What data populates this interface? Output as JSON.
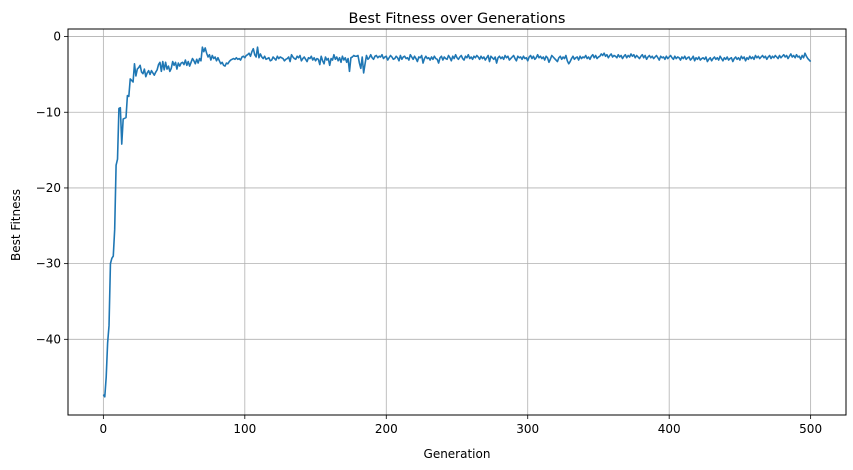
{
  "chart_data": {
    "type": "line",
    "title": "Best Fitness over Generations",
    "xlabel": "Generation",
    "ylabel": "Best Fitness",
    "xlim": [
      -25,
      525
    ],
    "ylim": [
      -50,
      1
    ],
    "grid": true,
    "line_color": "#1f77b4",
    "x_ticks": [
      0,
      100,
      200,
      300,
      400,
      500
    ],
    "y_ticks": [
      0,
      -10,
      -20,
      -30,
      -40
    ],
    "x_tick_labels": [
      "0",
      "100",
      "200",
      "300",
      "400",
      "500"
    ],
    "y_tick_labels": [
      "0",
      "−10",
      "−20",
      "−30",
      "−40"
    ],
    "series": [
      {
        "x_start": 0,
        "x_step": 1,
        "values": [
          -47.3,
          -47.6,
          -45.0,
          -40.5,
          -38.2,
          -30.0,
          -29.3,
          -29.0,
          -25.5,
          -17.0,
          -16.2,
          -9.5,
          -9.4,
          -14.2,
          -10.9,
          -10.8,
          -10.7,
          -7.8,
          -7.9,
          -5.6,
          -5.8,
          -6.0,
          -3.6,
          -5.2,
          -4.3,
          -4.1,
          -3.8,
          -4.7,
          -4.9,
          -4.3,
          -5.3,
          -4.8,
          -4.5,
          -5.0,
          -4.5,
          -4.8,
          -5.1,
          -4.7,
          -4.4,
          -3.7,
          -3.4,
          -4.6,
          -3.3,
          -4.4,
          -3.4,
          -4.3,
          -3.9,
          -4.6,
          -4.2,
          -3.3,
          -3.8,
          -3.4,
          -4.3,
          -3.5,
          -3.9,
          -3.5,
          -3.4,
          -3.7,
          -3.1,
          -3.8,
          -3.3,
          -3.9,
          -3.4,
          -2.9,
          -3.2,
          -3.6,
          -3.0,
          -3.5,
          -2.9,
          -3.2,
          -1.4,
          -2.0,
          -1.5,
          -2.2,
          -2.7,
          -2.4,
          -3.1,
          -2.5,
          -2.9,
          -2.7,
          -3.2,
          -2.8,
          -3.2,
          -3.6,
          -3.4,
          -3.8,
          -3.9,
          -3.5,
          -3.6,
          -3.3,
          -3.1,
          -3.0,
          -2.9,
          -3.0,
          -2.8,
          -3.0,
          -2.9,
          -3.1,
          -2.7,
          -2.6,
          -2.8,
          -2.5,
          -2.4,
          -2.2,
          -2.6,
          -2.0,
          -1.6,
          -2.4,
          -2.7,
          -1.4,
          -2.8,
          -2.3,
          -2.7,
          -2.9,
          -2.6,
          -3.0,
          -2.9,
          -2.8,
          -3.2,
          -3.1,
          -2.7,
          -2.9,
          -3.1,
          -2.6,
          -2.9,
          -2.7,
          -2.8,
          -2.9,
          -3.2,
          -3.0,
          -2.9,
          -2.7,
          -3.3,
          -2.4,
          -2.7,
          -2.9,
          -3.0,
          -2.6,
          -2.8,
          -2.5,
          -3.2,
          -2.9,
          -2.7,
          -3.0,
          -3.3,
          -2.8,
          -2.9,
          -2.6,
          -3.1,
          -2.8,
          -3.2,
          -2.9,
          -3.0,
          -3.7,
          -2.6,
          -3.2,
          -3.6,
          -2.7,
          -3.1,
          -2.9,
          -3.8,
          -2.9,
          -3.1,
          -2.4,
          -3.0,
          -2.7,
          -3.2,
          -2.8,
          -3.4,
          -2.6,
          -3.1,
          -2.8,
          -3.4,
          -2.9,
          -4.6,
          -2.8,
          -2.7,
          -2.5,
          -2.6,
          -2.6,
          -2.5,
          -3.5,
          -4.2,
          -2.7,
          -4.8,
          -3.6,
          -2.5,
          -3.0,
          -2.8,
          -2.4,
          -2.8,
          -3.0,
          -2.6,
          -2.5,
          -2.8,
          -2.6,
          -2.7,
          -2.4,
          -2.9,
          -2.7,
          -2.6,
          -3.1,
          -2.8,
          -2.5,
          -2.7,
          -3.0,
          -2.9,
          -2.6,
          -2.8,
          -3.2,
          -2.5,
          -3.0,
          -2.7,
          -2.6,
          -2.9,
          -2.8,
          -3.1,
          -2.4,
          -2.7,
          -3.0,
          -2.6,
          -2.9,
          -3.3,
          -2.7,
          -2.8,
          -2.5,
          -3.5,
          -2.9,
          -2.6,
          -2.9,
          -2.8,
          -3.1,
          -2.7,
          -3.0,
          -2.6,
          -2.9,
          -3.0,
          -3.5,
          -2.8,
          -2.6,
          -3.1,
          -2.7,
          -2.9,
          -3.0,
          -2.5,
          -2.8,
          -3.2,
          -2.6,
          -2.9,
          -2.4,
          -2.8,
          -3.0,
          -2.7,
          -2.5,
          -2.9,
          -3.1,
          -2.6,
          -2.8,
          -2.4,
          -2.9,
          -2.7,
          -3.0,
          -2.6,
          -2.8,
          -2.5,
          -2.7,
          -3.0,
          -2.6,
          -2.9,
          -2.7,
          -3.1,
          -2.8,
          -2.5,
          -3.3,
          -2.6,
          -2.8,
          -3.0,
          -2.7,
          -3.5,
          -2.8,
          -2.6,
          -2.9,
          -2.7,
          -3.0,
          -2.5,
          -2.8,
          -2.6,
          -3.1,
          -2.9,
          -2.7,
          -2.5,
          -2.9,
          -3.2,
          -2.6,
          -2.8,
          -2.7,
          -3.0,
          -2.6,
          -2.9,
          -2.8,
          -3.2,
          -2.7,
          -2.5,
          -2.9,
          -2.6,
          -3.0,
          -2.8,
          -2.4,
          -2.8,
          -2.6,
          -2.9,
          -2.7,
          -3.1,
          -2.6,
          -2.8,
          -3.4,
          -3.0,
          -2.5,
          -2.7,
          -2.9,
          -3.1,
          -3.3,
          -2.8,
          -2.6,
          -3.0,
          -2.7,
          -2.9,
          -2.5,
          -3.2,
          -3.6,
          -3.3,
          -2.9,
          -2.6,
          -3.0,
          -2.8,
          -2.7,
          -3.1,
          -2.6,
          -2.9,
          -2.7,
          -2.8,
          -2.5,
          -2.9,
          -2.7,
          -3.0,
          -2.6,
          -2.4,
          -2.8,
          -2.5,
          -2.9,
          -2.7,
          -2.6,
          -2.3,
          -2.5,
          -2.2,
          -2.6,
          -2.4,
          -2.8,
          -2.5,
          -2.3,
          -2.7,
          -2.5,
          -2.6,
          -2.8,
          -2.4,
          -2.7,
          -2.5,
          -2.9,
          -2.6,
          -2.4,
          -2.8,
          -2.5,
          -2.7,
          -2.3,
          -2.6,
          -2.4,
          -2.8,
          -2.5,
          -2.7,
          -2.9,
          -2.6,
          -2.4,
          -2.8,
          -2.5,
          -3.0,
          -2.7,
          -2.5,
          -2.8,
          -2.6,
          -2.9,
          -2.7,
          -2.5,
          -2.8,
          -3.1,
          -2.6,
          -2.8,
          -2.7,
          -3.0,
          -2.6,
          -2.9,
          -2.7,
          -2.5,
          -2.8,
          -3.0,
          -2.6,
          -2.9,
          -2.7,
          -2.8,
          -3.1,
          -2.7,
          -2.9,
          -2.6,
          -3.0,
          -2.8,
          -2.7,
          -3.1,
          -2.9,
          -2.6,
          -3.2,
          -2.8,
          -3.0,
          -2.7,
          -3.1,
          -2.9,
          -2.8,
          -3.0,
          -2.7,
          -3.3,
          -3.0,
          -2.8,
          -3.2,
          -2.9,
          -2.7,
          -3.0,
          -2.8,
          -3.1,
          -2.6,
          -2.9,
          -3.2,
          -2.8,
          -3.0,
          -2.7,
          -3.1,
          -2.9,
          -2.8,
          -3.3,
          -2.9,
          -2.7,
          -3.0,
          -2.8,
          -3.1,
          -2.6,
          -2.9,
          -2.7,
          -3.2,
          -2.8,
          -3.0,
          -2.6,
          -2.9,
          -2.7,
          -3.0,
          -2.5,
          -2.8,
          -2.6,
          -2.9,
          -2.7,
          -2.5,
          -2.8,
          -2.6,
          -3.0,
          -2.7,
          -2.5,
          -2.9,
          -2.6,
          -2.8,
          -2.5,
          -2.7,
          -2.9,
          -2.5,
          -2.8,
          -2.6,
          -2.4,
          -2.7,
          -2.5,
          -2.9,
          -2.6,
          -2.3,
          -2.7,
          -2.5,
          -2.8,
          -2.4,
          -2.7,
          -2.6,
          -3.0,
          -2.5,
          -2.8,
          -2.2,
          -2.6,
          -2.9,
          -3.1,
          -3.3
        ]
      }
    ]
  }
}
